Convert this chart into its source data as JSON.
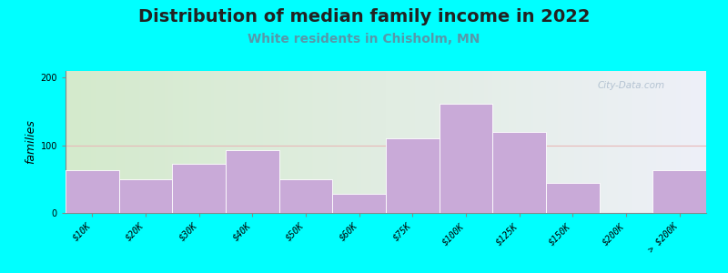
{
  "title": "Distribution of median family income in 2022",
  "subtitle": "White residents in Chisholm, MN",
  "ylabel": "families",
  "categories": [
    "$10K",
    "$20K",
    "$30K",
    "$40K",
    "$50K",
    "$60K",
    "$75K",
    "$100K",
    "$125K",
    "$150K",
    "$200K",
    "> $200K"
  ],
  "values": [
    63,
    50,
    73,
    93,
    50,
    28,
    110,
    162,
    120,
    45,
    0,
    63
  ],
  "bar_color": "#c9aad8",
  "bar_edgecolor": "#ffffff",
  "background_outer": "#00ffff",
  "bg_left_color": "#d4eacc",
  "bg_right_color": "#eef0f8",
  "ylim": [
    0,
    210
  ],
  "yticks": [
    0,
    100,
    200
  ],
  "title_fontsize": 14,
  "subtitle_fontsize": 10,
  "ylabel_fontsize": 9,
  "tick_fontsize": 7,
  "watermark": "City-Data.com",
  "grid_color": "#e8b8b8",
  "watermark_color": "#aabbcc"
}
